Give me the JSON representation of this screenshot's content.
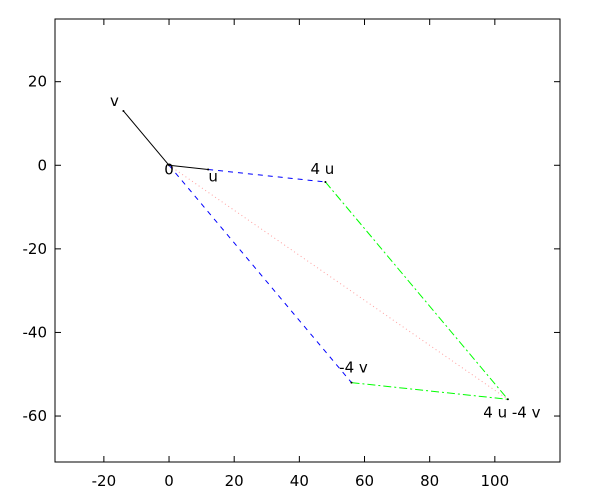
{
  "chart_data": {
    "type": "line",
    "title": "",
    "xlabel": "",
    "ylabel": "",
    "xlim": [
      -35,
      120
    ],
    "ylim": [
      -71,
      35
    ],
    "grid": false,
    "x_ticks": [
      -20,
      0,
      20,
      40,
      60,
      80,
      100
    ],
    "y_ticks": [
      20,
      0,
      -20,
      -40,
      -60
    ],
    "points": [
      {
        "label": "0",
        "x": 0,
        "y": 0
      },
      {
        "label": "u",
        "x": 12,
        "y": -1
      },
      {
        "label": "v",
        "x": -14,
        "y": 13
      },
      {
        "label": "4 u",
        "x": 48,
        "y": -4
      },
      {
        "label": "-4 v",
        "x": 56,
        "y": -52
      },
      {
        "label": "4 u -4 v",
        "x": 104,
        "y": -56
      }
    ],
    "series": [
      {
        "style": "solid",
        "color": "#000000",
        "segments": [
          [
            0,
            1
          ],
          [
            0,
            2
          ]
        ]
      },
      {
        "style": "dashed",
        "color": "#0000ff",
        "segments": [
          [
            1,
            3
          ],
          [
            0,
            4
          ]
        ]
      },
      {
        "style": "dashdot",
        "color": "#00ff00",
        "segments": [
          [
            3,
            5
          ],
          [
            4,
            5
          ]
        ]
      },
      {
        "style": "dotted",
        "color": "#ffa0a0",
        "segments": [
          [
            0,
            5
          ]
        ]
      }
    ]
  }
}
